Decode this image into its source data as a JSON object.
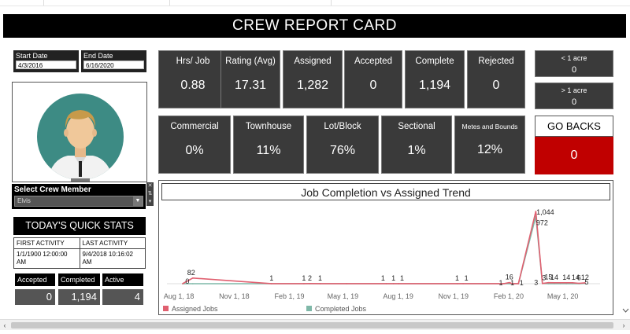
{
  "title": "CREW REPORT CARD",
  "filters": {
    "start_date": {
      "label": "Start Date",
      "value": "4/3/2016"
    },
    "end_date": {
      "label": "End Date",
      "value": "6/16/2020"
    }
  },
  "crew_select": {
    "label": "Select Crew Member",
    "value": "Elvis"
  },
  "quick_stats": {
    "title": "TODAY'S QUICK STATS",
    "first_activity": {
      "label": "FIRST ACTIVITY",
      "value": "1/1/1900 12:00:00 AM"
    },
    "last_activity": {
      "label": "LAST ACTIVITY",
      "value": "9/4/2018 10:16:02 AM"
    },
    "accepted": {
      "label": "Accepted",
      "value": "0"
    },
    "completed": {
      "label": "Completed",
      "value": "1,194"
    },
    "active": {
      "label": "Active",
      "value": "4"
    }
  },
  "kpis_row1": [
    {
      "label": "Hrs/ Job",
      "value": "0.88"
    },
    {
      "label": "Rating (Avg)",
      "value": "17.31"
    },
    {
      "label": "Assigned",
      "value": "1,282"
    },
    {
      "label": "Accepted",
      "value": "0"
    },
    {
      "label": "Complete",
      "value": "1,194"
    },
    {
      "label": "Rejected",
      "value": "0"
    }
  ],
  "kpis_row2": [
    {
      "label": "Commercial",
      "value": "0%"
    },
    {
      "label": "Townhouse",
      "value": "11%"
    },
    {
      "label": "Lot/Block",
      "value": "76%"
    },
    {
      "label": "Sectional",
      "value": "1%"
    },
    {
      "label": "Metes and Bounds",
      "value": "12%"
    }
  ],
  "acre": [
    {
      "label": "< 1 acre",
      "value": "0"
    },
    {
      "label": "> 1 acre",
      "value": "0"
    }
  ],
  "go_backs": {
    "label": "GO BACKS",
    "value": "0"
  },
  "colors": {
    "accent_red": "#c00000",
    "assigned_line": "#e06070",
    "completed_line": "#7fb8a8"
  },
  "chart_data": {
    "type": "line",
    "title": "Job Completion vs Assigned Trend",
    "x_ticks": [
      "Aug 1, 18",
      "Nov 1, 18",
      "Feb 1, 19",
      "May 1, 19",
      "Aug 1, 19",
      "Nov 1, 19",
      "Feb 1, 20",
      "May 1, 20"
    ],
    "x": [
      "2018-08-15",
      "2018-09-01",
      "2019-01-10",
      "2019-03-05",
      "2019-03-15",
      "2019-04-01",
      "2019-05-15",
      "2019-07-20",
      "2019-08-01",
      "2019-08-10",
      "2019-11-15",
      "2019-11-25",
      "2020-02-01",
      "2020-02-10",
      "2020-02-15",
      "2020-02-25",
      "2020-03-25",
      "2020-04-05",
      "2020-04-15",
      "2020-04-25",
      "2020-05-05",
      "2020-05-15",
      "2020-05-25",
      "2020-06-05",
      "2020-06-15"
    ],
    "series": [
      {
        "name": "Assigned Jobs",
        "color": "#e06070",
        "values": [
          0,
          82,
          1,
          1,
          2,
          1,
          1,
          1,
          1,
          1,
          1,
          1,
          1,
          16,
          1,
          1,
          1044,
          3,
          15,
          14,
          14,
          14,
          14,
          6,
          12
        ]
      },
      {
        "name": "Completed Jobs",
        "color": "#7fb8a8",
        "values": [
          0,
          0,
          0,
          0,
          0,
          0,
          0,
          0,
          0,
          0,
          0,
          0,
          0,
          0,
          0,
          0,
          972,
          3,
          1,
          1,
          1,
          1,
          1,
          1,
          5
        ]
      }
    ],
    "point_labels": [
      "0",
      "82",
      "1",
      "1",
      "2",
      "1",
      "1",
      "1",
      "1",
      "1",
      "1",
      "1",
      "1",
      "16",
      "1",
      "1",
      "1,044",
      "972",
      "3",
      "1",
      "5",
      "1",
      "4",
      "14",
      "14",
      "6",
      "12",
      "5"
    ],
    "ylim": [
      0,
      1100
    ],
    "grid": false,
    "legend": "bottom"
  }
}
